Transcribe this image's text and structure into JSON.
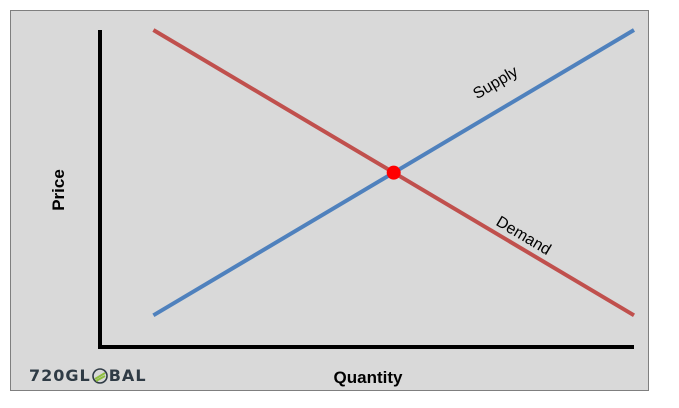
{
  "chart_data": {
    "type": "line",
    "title": "",
    "xlabel": "Quantity",
    "ylabel": "Price",
    "xlim": [
      0,
      10
    ],
    "ylim": [
      0,
      10
    ],
    "grid": false,
    "legend": "none",
    "series": [
      {
        "name": "Supply",
        "color": "#4f81bd",
        "x": [
          1,
          10
        ],
        "y": [
          1,
          10
        ]
      },
      {
        "name": "Demand",
        "color": "#c0504d",
        "x": [
          1,
          10
        ],
        "y": [
          10,
          1
        ]
      }
    ],
    "annotations": [
      {
        "type": "point",
        "label": "equilibrium",
        "x": 5.5,
        "y": 5.5,
        "color": "#ff0000"
      }
    ]
  },
  "logo": {
    "text_before": "720GL",
    "text_after": "BAL"
  }
}
